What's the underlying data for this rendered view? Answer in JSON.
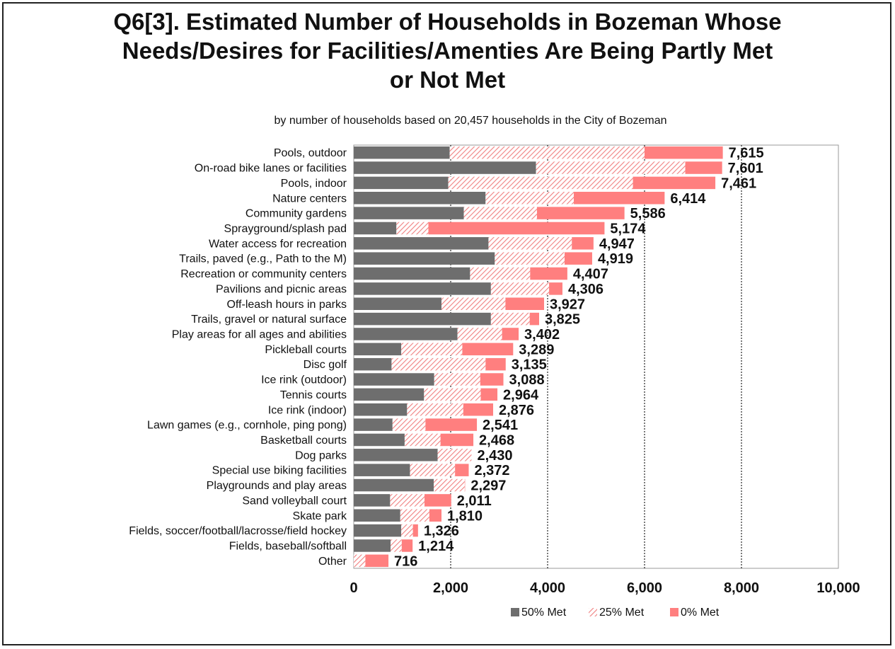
{
  "title_lines": [
    "Q6[3]. Estimated Number of Households in Bozeman Whose",
    "Needs/Desires for Facilities/Amenties Are Being Partly Met",
    "or Not Met"
  ],
  "subtitle": "by number of households based on 20,457 households in the City of Bozeman",
  "colors": {
    "met50": "#6e6e6e",
    "met25_stripe": "#f08080",
    "met0": "#ff7f7f",
    "grid": "#222222"
  },
  "chart_data": {
    "type": "bar",
    "orientation": "horizontal",
    "stacked": true,
    "title": "Q6[3]. Estimated Number of Households in Bozeman Whose Needs/Desires for Facilities/Amenties Are Being Partly Met or Not Met",
    "subtitle": "by number of households based on 20,457 households in the City of Bozeman",
    "xlim": [
      0,
      10000
    ],
    "xticks": [
      "0",
      "2,000",
      "4,000",
      "6,000",
      "8,000",
      "10,000"
    ],
    "xtick_values": [
      0,
      2000,
      4000,
      6000,
      8000,
      10000
    ],
    "grid": "vertical dotted",
    "legend_position": "bottom-right",
    "categories": [
      "Pools, outdoor",
      "On-road bike lanes or facilities",
      "Pools, indoor",
      "Nature centers",
      "Community gardens",
      "Sprayground/splash pad",
      "Water access for recreation",
      "Trails, paved (e.g., Path to the M)",
      "Recreation or community centers",
      "Pavilions and picnic areas",
      "Off-leash hours in parks",
      "Trails, gravel or natural surface",
      "Play areas for all ages and abilities",
      "Pickleball courts",
      "Disc golf",
      "Ice rink (outdoor)",
      "Tennis courts",
      "Ice rink (indoor)",
      "Lawn games (e.g., cornhole, ping pong)",
      "Basketball courts",
      "Dog parks",
      "Special use biking facilities",
      "Playgrounds and play areas",
      "Sand volleyball court",
      "Skate park",
      "Fields, soccer/football/lacrosse/field hockey",
      "Fields, baseball/softball",
      "Other"
    ],
    "series": [
      {
        "name": "50% Met",
        "values": [
          1980,
          3760,
          1950,
          2720,
          2270,
          880,
          2780,
          2910,
          2400,
          2830,
          1810,
          2830,
          2140,
          980,
          780,
          1660,
          1450,
          1100,
          800,
          1050,
          1730,
          1160,
          1650,
          750,
          960,
          980,
          760,
          0
        ]
      },
      {
        "name": "25% Met",
        "values": [
          4020,
          3080,
          3810,
          1820,
          1510,
          660,
          1720,
          1440,
          1240,
          1200,
          1320,
          800,
          920,
          1260,
          1940,
          950,
          1170,
          1160,
          680,
          740,
          700,
          930,
          640,
          710,
          600,
          240,
          230,
          240
        ]
      },
      {
        "name": "0% Met",
        "values": [
          1615,
          761,
          1701,
          1874,
          1806,
          3634,
          447,
          569,
          767,
          276,
          797,
          195,
          342,
          1049,
          415,
          478,
          344,
          616,
          1061,
          678,
          0,
          282,
          7,
          551,
          250,
          106,
          224,
          476
        ]
      }
    ],
    "totals": [
      7615,
      7601,
      7461,
      6414,
      5586,
      5174,
      4947,
      4919,
      4407,
      4306,
      3927,
      3825,
      3402,
      3289,
      3135,
      3088,
      2964,
      2876,
      2541,
      2468,
      2430,
      2372,
      2297,
      2011,
      1810,
      1326,
      1214,
      716
    ],
    "total_labels": [
      "7,615",
      "7,601",
      "7,461",
      "6,414",
      "5,586",
      "5,174",
      "4,947",
      "4,919",
      "4,407",
      "4,306",
      "3,927",
      "3,825",
      "3,402",
      "3,289",
      "3,135",
      "3,088",
      "2,964",
      "2,876",
      "2,541",
      "2,468",
      "2,430",
      "2,372",
      "2,297",
      "2,011",
      "1,810",
      "1,326",
      "1,214",
      "716"
    ]
  }
}
